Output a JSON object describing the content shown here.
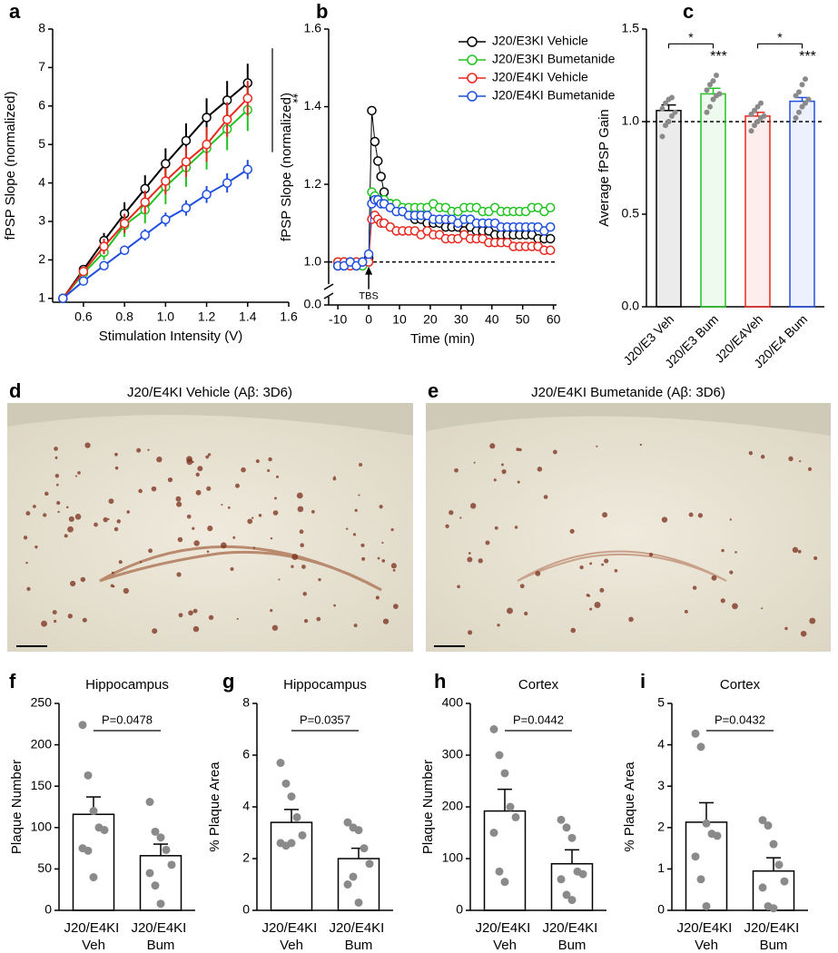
{
  "chart_data": [
    {
      "type": "line",
      "panel": "a",
      "xlabel": "Stimulation Intensity (V)",
      "ylabel": "fPSP Slope (normalized)",
      "x": [
        0.5,
        0.6,
        0.7,
        0.8,
        0.9,
        1.0,
        1.1,
        1.2,
        1.3,
        1.4
      ],
      "series": [
        {
          "color": "#000000",
          "values": [
            1,
            1.75,
            2.5,
            3.2,
            3.85,
            4.5,
            5.1,
            5.7,
            6.15,
            6.6
          ],
          "errors": [
            0,
            0.1,
            0.2,
            0.3,
            0.35,
            0.4,
            0.45,
            0.5,
            0.5,
            0.5
          ]
        },
        {
          "color": "#22c322",
          "values": [
            1,
            1.65,
            2.2,
            2.9,
            3.3,
            3.9,
            4.4,
            4.9,
            5.4,
            5.9
          ],
          "errors": [
            0,
            0.1,
            0.2,
            0.3,
            0.35,
            0.45,
            0.5,
            0.55,
            0.55,
            0.55
          ]
        },
        {
          "color": "#e8281e",
          "values": [
            1,
            1.7,
            2.35,
            2.95,
            3.5,
            4.05,
            4.55,
            5.0,
            5.65,
            6.2
          ],
          "errors": [
            0,
            0.1,
            0.2,
            0.25,
            0.3,
            0.35,
            0.4,
            0.45,
            0.45,
            0.45
          ]
        },
        {
          "color": "#1f4fe0",
          "values": [
            1,
            1.45,
            1.85,
            2.25,
            2.65,
            3.05,
            3.35,
            3.7,
            4.0,
            4.35
          ],
          "errors": [
            0,
            0.05,
            0.1,
            0.12,
            0.15,
            0.18,
            0.2,
            0.22,
            0.25,
            0.25
          ]
        }
      ],
      "xlim": [
        0.45,
        1.6
      ],
      "xticks": [
        0.6,
        0.8,
        {
          "value": 1,
          "label": "1.0"
        },
        1.2,
        1.4,
        1.6
      ],
      "ylim": [
        0.9,
        8
      ],
      "yticks": [
        1,
        2,
        3,
        4,
        5,
        6,
        7,
        8
      ],
      "annotation": "**"
    },
    {
      "type": "line",
      "panel": "b",
      "xlabel": "Time (min)",
      "ylabel": "fPSP Slope (normalized)",
      "marker_label": "TBS",
      "hline": 1,
      "x": [
        -10,
        -8,
        -6,
        -4,
        -2,
        0,
        1,
        2,
        3,
        4,
        5,
        7,
        9,
        11,
        13,
        15,
        17,
        19,
        21,
        23,
        25,
        27,
        29,
        31,
        33,
        35,
        37,
        39,
        41,
        43,
        45,
        47,
        49,
        51,
        53,
        55,
        57,
        59
      ],
      "series": [
        {
          "name": "J20/E3KI Vehicle",
          "color": "#000000",
          "values": [
            0.99,
            1.0,
            1.0,
            0.99,
            1.0,
            1.01,
            1.39,
            1.31,
            1.26,
            1.22,
            1.18,
            1.15,
            1.14,
            1.13,
            1.12,
            1.11,
            1.11,
            1.1,
            1.1,
            1.1,
            1.09,
            1.09,
            1.09,
            1.08,
            1.09,
            1.08,
            1.08,
            1.08,
            1.07,
            1.07,
            1.07,
            1.07,
            1.07,
            1.07,
            1.07,
            1.06,
            1.06,
            1.06
          ]
        },
        {
          "name": "J20/E3KI Bumetanide",
          "color": "#22c322",
          "values": [
            1.0,
            0.99,
            1.0,
            1.0,
            0.99,
            1.0,
            1.18,
            1.17,
            1.16,
            1.16,
            1.16,
            1.15,
            1.15,
            1.14,
            1.14,
            1.14,
            1.14,
            1.14,
            1.15,
            1.14,
            1.14,
            1.13,
            1.13,
            1.14,
            1.14,
            1.14,
            1.13,
            1.13,
            1.14,
            1.13,
            1.13,
            1.13,
            1.13,
            1.13,
            1.14,
            1.14,
            1.13,
            1.14
          ]
        },
        {
          "name": "J20/E4KI Vehicle",
          "color": "#e8281e",
          "values": [
            1.0,
            1.0,
            0.99,
            1.0,
            1.0,
            1.0,
            1.11,
            1.12,
            1.11,
            1.1,
            1.1,
            1.09,
            1.08,
            1.08,
            1.08,
            1.08,
            1.07,
            1.08,
            1.07,
            1.07,
            1.06,
            1.06,
            1.06,
            1.07,
            1.06,
            1.06,
            1.06,
            1.05,
            1.05,
            1.05,
            1.05,
            1.04,
            1.04,
            1.04,
            1.04,
            1.04,
            1.03,
            1.03
          ]
        },
        {
          "name": "J20/E4KI Bumetanide",
          "color": "#1f4fe0",
          "values": [
            0.99,
            0.99,
            1.0,
            0.99,
            1.0,
            1.02,
            1.15,
            1.16,
            1.16,
            1.15,
            1.15,
            1.14,
            1.13,
            1.13,
            1.12,
            1.12,
            1.12,
            1.12,
            1.11,
            1.11,
            1.11,
            1.11,
            1.1,
            1.11,
            1.11,
            1.1,
            1.1,
            1.1,
            1.1,
            1.09,
            1.09,
            1.09,
            1.09,
            1.09,
            1.09,
            1.09,
            1.08,
            1.09
          ]
        }
      ],
      "xlim": [
        -13,
        61
      ],
      "xticks": [
        -10,
        0,
        10,
        20,
        30,
        40,
        50,
        60
      ],
      "ylim": [
        0,
        1.6
      ],
      "ybreak": [
        0.05,
        0.95
      ],
      "yticks": [
        {
          "value": 0,
          "label": "0.0"
        },
        {
          "value": 1,
          "label": "1.0"
        },
        1.2,
        1.4,
        1.6
      ]
    },
    {
      "type": "bar",
      "panel": "c",
      "ylabel": "Average fPSP Gain",
      "hline": 1,
      "categories": [
        "J20/E3 Veh",
        "J20/E3 Bum",
        "J20/E4Veh",
        "J20/E4 Bum"
      ],
      "values": [
        1.06,
        1.15,
        1.03,
        1.11
      ],
      "errors": [
        0.03,
        0.03,
        0.02,
        0.02
      ],
      "colors": [
        "#000000",
        "#22c322",
        "#e8281e",
        "#1f4fe0"
      ],
      "points": [
        [
          0.92,
          0.98,
          1.0,
          1.03,
          1.05,
          1.07,
          1.1,
          1.12,
          1.13
        ],
        [
          1.05,
          1.08,
          1.12,
          1.14,
          1.15,
          1.17,
          1.2,
          1.22,
          1.25
        ],
        [
          0.95,
          0.98,
          1.0,
          1.02,
          1.03,
          1.04,
          1.06,
          1.08,
          1.1
        ],
        [
          1.02,
          1.05,
          1.08,
          1.1,
          1.12,
          1.14,
          1.16,
          1.2,
          1.23
        ]
      ],
      "annotations": [
        "*",
        "***",
        "*",
        "***"
      ],
      "ylim": [
        0,
        1.5
      ],
      "yticks": [
        {
          "value": 0,
          "label": "0.0"
        },
        0.5,
        {
          "value": 1,
          "label": "1.0"
        },
        1.5
      ]
    },
    {
      "type": "bar",
      "panel": "f",
      "title": "Hippocampus",
      "ylabel": "Plaque Number",
      "p_text": "P=0.0478",
      "categories": [
        "J20/E4KI Veh",
        "J20/E4KI Bum"
      ],
      "values": [
        116,
        66
      ],
      "errors": [
        21,
        14
      ],
      "colors": [
        "#000000",
        "#000000"
      ],
      "points": [
        [
          224,
          163,
          120,
          100,
          97,
          75,
          72,
          40
        ],
        [
          131,
          95,
          88,
          73,
          55,
          45,
          30,
          8
        ]
      ],
      "ylim": [
        0,
        250
      ],
      "yticks": [
        0,
        50,
        100,
        150,
        200,
        250
      ]
    },
    {
      "type": "bar",
      "panel": "g",
      "title": "Hippocampus",
      "ylabel": "% Plaque Area",
      "p_text": "P=0.0357",
      "categories": [
        "J20/E4KI Veh",
        "J20/E4KI Bum"
      ],
      "values": [
        3.4,
        2.0
      ],
      "errors": [
        0.5,
        0.4
      ],
      "colors": [
        "#000000",
        "#000000"
      ],
      "points": [
        [
          5.7,
          4.9,
          4.4,
          3.6,
          2.9,
          2.6,
          2.5,
          2.6
        ],
        [
          3.4,
          3.2,
          3.1,
          2.4,
          1.8,
          1.0,
          1.3,
          0.3
        ]
      ],
      "ylim": [
        0,
        8
      ],
      "yticks": [
        0,
        2,
        4,
        6,
        8
      ]
    },
    {
      "type": "bar",
      "panel": "h",
      "title": "Cortex",
      "ylabel": "Plaque Number",
      "p_text": "P=0.0442",
      "categories": [
        "J20/E4KI Veh",
        "J20/E4KI Bum"
      ],
      "values": [
        192,
        90
      ],
      "errors": [
        42,
        27
      ],
      "colors": [
        "#000000",
        "#000000"
      ],
      "points": [
        [
          350,
          300,
          265,
          200,
          180,
          150,
          75,
          55
        ],
        [
          175,
          160,
          140,
          75,
          70,
          60,
          30,
          20
        ]
      ],
      "ylim": [
        0,
        400
      ],
      "yticks": [
        0,
        100,
        200,
        300,
        400
      ]
    },
    {
      "type": "bar",
      "panel": "i",
      "title": "Cortex",
      "ylabel": "% Plaque Area",
      "p_text": "P=0.0432",
      "categories": [
        "J20/E4KI Veh",
        "J20/E4KI Bum"
      ],
      "values": [
        2.13,
        0.95
      ],
      "errors": [
        0.47,
        0.32
      ],
      "colors": [
        "#000000",
        "#000000"
      ],
      "points": [
        [
          4.27,
          3.95,
          2.1,
          1.85,
          1.8,
          1.3,
          0.75,
          0.1
        ],
        [
          2.18,
          2.05,
          1.6,
          1.1,
          0.7,
          0.55,
          0.1,
          0.05
        ]
      ],
      "ylim": [
        0,
        5
      ],
      "yticks": [
        0,
        1,
        2,
        3,
        4,
        5
      ]
    }
  ],
  "images": [
    {
      "panel": "d",
      "title": "J20/E4KI Vehicle (Aβ: 3D6)"
    },
    {
      "panel": "e",
      "title": "J20/E4KI Bumetanide (Aβ: 3D6)"
    }
  ]
}
